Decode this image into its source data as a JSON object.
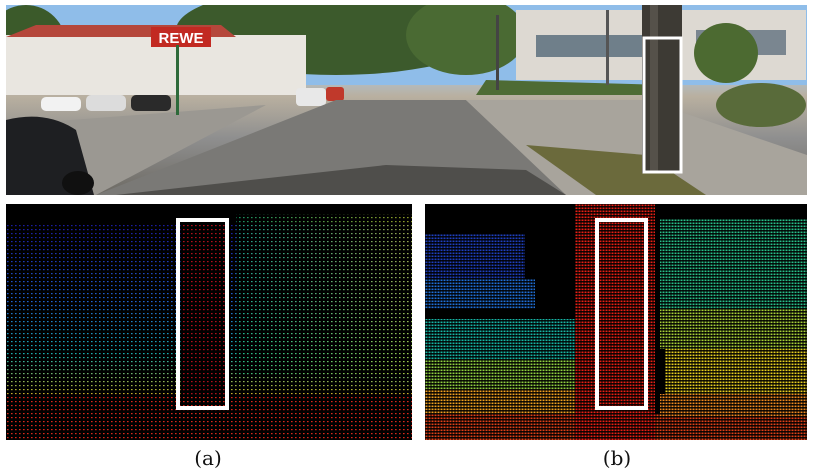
{
  "figure": {
    "photo": {
      "storefront_sign": "REWE"
    },
    "captions": {
      "a": "(a)",
      "b": "(b)"
    }
  },
  "colors": {
    "highlight_box": "#ffffff",
    "sky": "#9cc5ee",
    "road": "#7e7d7a",
    "foliage": "#3f5a2a"
  }
}
